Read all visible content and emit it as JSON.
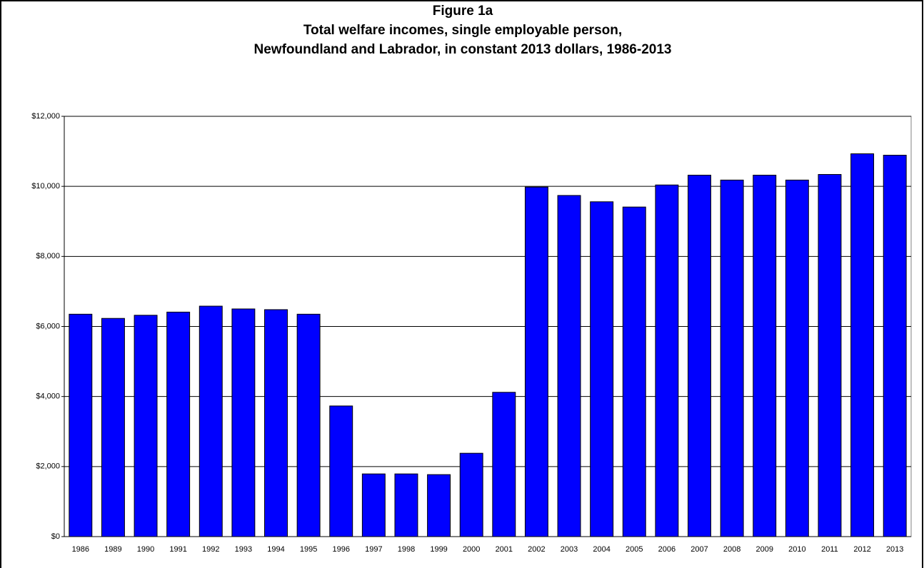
{
  "chart_data": {
    "type": "bar",
    "title": [
      "Figure 1a",
      "Total welfare incomes, single employable person,",
      "Newfoundland and Labrador, in constant 2013 dollars, 1986-2013"
    ],
    "categories": [
      "1986",
      "1989",
      "1990",
      "1991",
      "1992",
      "1993",
      "1994",
      "1995",
      "1996",
      "1997",
      "1998",
      "1999",
      "2000",
      "2001",
      "2002",
      "2003",
      "2004",
      "2005",
      "2006",
      "2007",
      "2008",
      "2009",
      "2010",
      "2011",
      "2012",
      "2013"
    ],
    "values": [
      6350,
      6230,
      6320,
      6410,
      6580,
      6500,
      6480,
      6350,
      3730,
      1790,
      1790,
      1770,
      2380,
      4120,
      9980,
      9740,
      9560,
      9410,
      10040,
      10320,
      10180,
      10320,
      10180,
      10340,
      10930,
      10890
    ],
    "color": "#0000ff",
    "ylim": [
      0,
      12000
    ],
    "yticks": [
      {
        "value": 0,
        "label": "$0"
      },
      {
        "value": 2000,
        "label": "$2,000"
      },
      {
        "value": 4000,
        "label": "$4,000"
      },
      {
        "value": 6000,
        "label": "$6,000"
      },
      {
        "value": 8000,
        "label": "$8,000"
      },
      {
        "value": 10000,
        "label": "$10,000"
      },
      {
        "value": 12000,
        "label": "$12,000"
      }
    ],
    "grid": true
  }
}
